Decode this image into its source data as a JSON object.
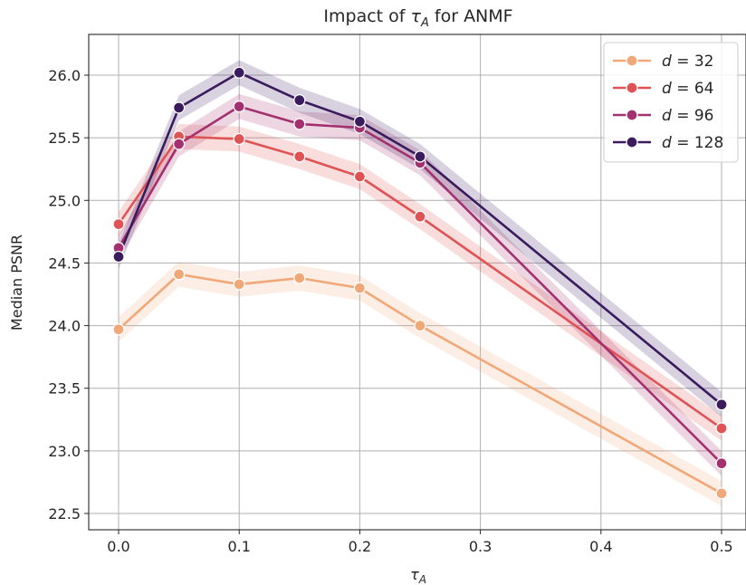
{
  "chart_data": {
    "type": "line",
    "title_prefix": "Impact of ",
    "title_symbol": "τ",
    "title_subscript": "A",
    "title_suffix": " for ANMF",
    "xlabel_symbol": "τ",
    "xlabel_subscript": "A",
    "ylabel": "Median PSNR",
    "x": [
      0.0,
      0.05,
      0.1,
      0.15,
      0.2,
      0.25,
      0.5
    ],
    "xlim": [
      -0.025,
      0.525
    ],
    "ylim": [
      22.38,
      26.33
    ],
    "xticks": [
      0.0,
      0.1,
      0.2,
      0.3,
      0.4,
      0.5
    ],
    "xtick_labels": [
      "0.0",
      "0.1",
      "0.2",
      "0.3",
      "0.4",
      "0.5"
    ],
    "yticks": [
      22.5,
      23.0,
      23.5,
      24.0,
      24.5,
      25.0,
      25.5,
      26.0
    ],
    "ytick_labels": [
      "22.5",
      "23.0",
      "23.5",
      "24.0",
      "24.5",
      "25.0",
      "25.5",
      "26.0"
    ],
    "grid": true,
    "legend_position": "top-right",
    "series": [
      {
        "name": "d = 32",
        "legend_var": "d",
        "legend_value": "32",
        "color": "#f1a878",
        "values": [
          23.97,
          24.41,
          24.33,
          24.38,
          24.3,
          24.0,
          22.66
        ],
        "band": 0.1
      },
      {
        "name": "d = 64",
        "legend_var": "d",
        "legend_value": "64",
        "color": "#e05355",
        "values": [
          24.81,
          25.51,
          25.49,
          25.35,
          25.19,
          24.87,
          23.18
        ],
        "band": 0.1
      },
      {
        "name": "d = 96",
        "legend_var": "d",
        "legend_value": "96",
        "color": "#a3306f",
        "values": [
          24.62,
          25.45,
          25.75,
          25.61,
          25.58,
          25.3,
          22.9
        ],
        "band": 0.1
      },
      {
        "name": "d = 128",
        "legend_var": "d",
        "legend_value": "128",
        "color": "#3a1b5e",
        "values": [
          24.55,
          25.74,
          26.02,
          25.8,
          25.63,
          25.35,
          23.37
        ],
        "band": 0.1
      }
    ]
  }
}
